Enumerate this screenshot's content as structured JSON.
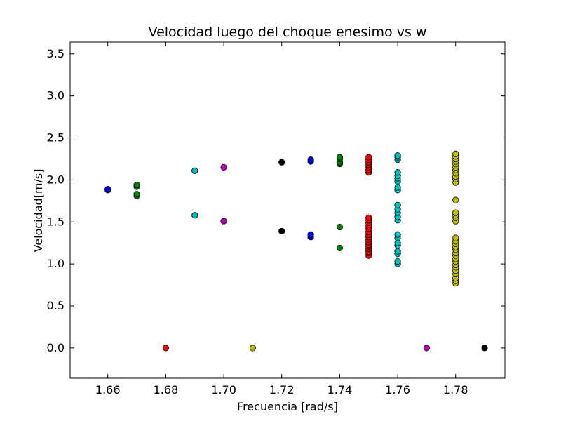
{
  "chart_data": {
    "type": "scatter",
    "title": "Velocidad luego del choque enesimo vs w",
    "xlabel": "Frecuencia [rad/s]",
    "ylabel": "Velocidad[m/s]",
    "xlim": [
      1.647,
      1.797
    ],
    "ylim": [
      -0.36,
      3.64
    ],
    "xticks": [
      1.66,
      1.68,
      1.7,
      1.72,
      1.74,
      1.76,
      1.78
    ],
    "xtick_labels": [
      "1.66",
      "1.68",
      "1.70",
      "1.72",
      "1.74",
      "1.76",
      "1.78"
    ],
    "yticks": [
      0.0,
      0.5,
      1.0,
      1.5,
      2.0,
      2.5,
      3.0,
      3.5
    ],
    "ytick_labels": [
      "0.0",
      "0.5",
      "1.0",
      "1.5",
      "2.0",
      "2.5",
      "3.0",
      "3.5"
    ],
    "grid": false,
    "legend": "none",
    "series": [
      {
        "color": "#0000ff",
        "x": 1.66,
        "y": [
          1.88,
          1.89
        ]
      },
      {
        "color": "#008000",
        "x": 1.67,
        "y": [
          1.81,
          1.83,
          1.92,
          1.94
        ]
      },
      {
        "color": "#ff0000",
        "x": 1.68,
        "y": [
          0.0
        ]
      },
      {
        "color": "#00bfbf",
        "x": 1.69,
        "y": [
          1.58,
          2.11
        ]
      },
      {
        "color": "#bf00bf",
        "x": 1.7,
        "y": [
          1.51,
          2.15
        ]
      },
      {
        "color": "#bfbf00",
        "x": 1.71,
        "y": [
          0.0
        ]
      },
      {
        "color": "#000000",
        "x": 1.72,
        "y": [
          1.39,
          2.21
        ]
      },
      {
        "color": "#0000ff",
        "x": 1.73,
        "y": [
          1.32,
          1.35,
          2.22,
          2.24
        ]
      },
      {
        "color": "#008000",
        "x": 1.74,
        "y": [
          1.19,
          1.44,
          2.19,
          2.21,
          2.25,
          2.27
        ]
      },
      {
        "color": "#ff0000",
        "x": 1.75,
        "y": [
          1.1,
          1.13,
          1.15,
          1.18,
          1.21,
          1.23,
          1.26,
          1.29,
          1.32,
          1.35,
          1.38,
          1.42,
          1.45,
          1.49,
          1.52,
          1.55,
          2.09,
          2.12,
          2.15,
          2.18,
          2.21,
          2.24,
          2.27
        ]
      },
      {
        "color": "#00bfbf",
        "x": 1.76,
        "y": [
          1.0,
          1.03,
          1.12,
          1.15,
          1.22,
          1.25,
          1.31,
          1.35,
          1.52,
          1.56,
          1.61,
          1.65,
          1.7,
          1.88,
          1.91,
          1.98,
          2.02,
          2.05,
          2.09,
          2.24,
          2.27,
          2.29
        ]
      },
      {
        "color": "#bfbf00",
        "x": 1.78,
        "y": [
          0.77,
          0.8,
          0.83,
          0.88,
          0.92,
          0.96,
          0.99,
          1.03,
          1.06,
          1.1,
          1.13,
          1.17,
          1.2,
          1.24,
          1.27,
          1.31,
          1.51,
          1.55,
          1.58,
          1.61,
          1.76,
          1.97,
          2.01,
          2.04,
          2.08,
          2.12,
          2.15,
          2.19,
          2.22,
          2.25,
          2.28,
          2.31
        ]
      },
      {
        "color": "#bf00bf",
        "x": 1.77,
        "y": [
          0.0
        ]
      },
      {
        "color": "#000000",
        "x": 1.79,
        "y": [
          0.0
        ]
      }
    ]
  }
}
